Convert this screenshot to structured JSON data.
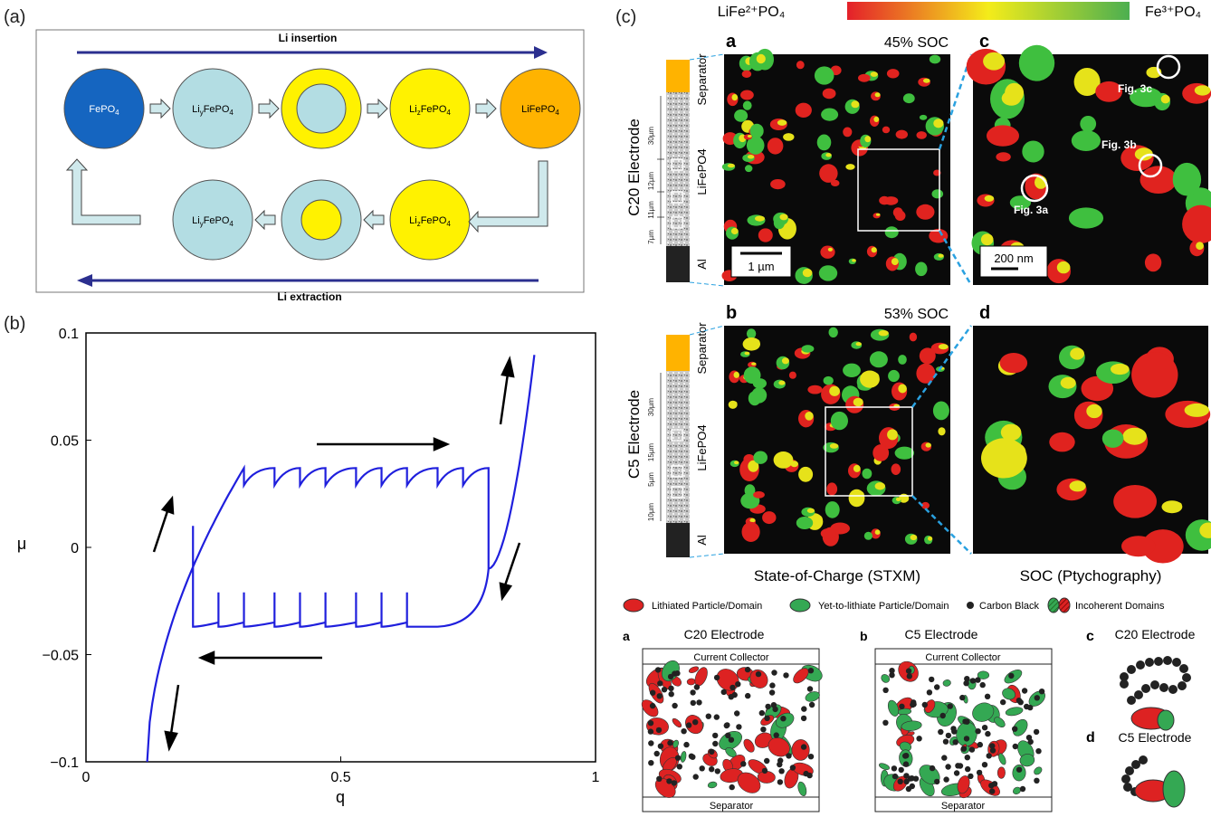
{
  "panel_a": {
    "label": "(a)",
    "insertion_label": "Li insertion",
    "extraction_label": "Li extraction",
    "top_row": [
      "FePO4",
      "LiyFePO4",
      "",
      "LizFePO4",
      "LiFePO4"
    ],
    "bottom_row": [
      "LiyFePO4",
      "",
      "LizFePO4"
    ],
    "colors": {
      "dark_blue": "#1565c0",
      "light_blue": "#b3dde3",
      "yellow": "#fff200",
      "orange": "#ffb300",
      "arrow_blue": "#2b2f8f"
    }
  },
  "panel_b": {
    "label": "(b)",
    "chart_data": {
      "type": "line",
      "xlabel": "q",
      "ylabel": "μ",
      "xlim": [
        0,
        1
      ],
      "ylim": [
        -0.1,
        0.1
      ],
      "xticks": [
        "0",
        "0.5",
        "1"
      ],
      "yticks": [
        "0.1",
        "0.05",
        "0",
        "−0.05",
        "−0.1"
      ],
      "upper_branch_peaks_q": [
        0.31,
        0.37,
        0.42,
        0.47,
        0.53,
        0.58,
        0.63,
        0.69,
        0.74,
        0.79
      ],
      "upper_value": 0.037,
      "upper_dip": 0.029,
      "lower_branch_q": [
        0.21,
        0.26,
        0.31,
        0.37,
        0.42,
        0.47,
        0.53,
        0.58,
        0.63
      ],
      "lower_value": -0.037,
      "lower_peak": -0.028,
      "line_color": "#1f1fdd"
    }
  },
  "panel_c": {
    "label": "(c)",
    "colorbar_left": "LiFe²⁺PO₄",
    "colorbar_right": "Fe³⁺PO₄",
    "top": {
      "electrode": "C20 Electrode",
      "letter_a": "a",
      "soc": "45% SOC",
      "letter_c": "c",
      "scale_a": "1 µm",
      "scale_c": "200 nm",
      "labels": [
        "Separator",
        "LiFePO4",
        "Al"
      ],
      "dims": [
        "30µm",
        "12µm",
        "11µm",
        "7µm"
      ],
      "figs": [
        "Fig. 3c",
        "Fig. 3b",
        "Fig. 3a"
      ]
    },
    "bottom": {
      "electrode": "C5 Electrode",
      "letter_b": "b",
      "soc": "53% SOC",
      "letter_d": "d",
      "labels": [
        "Separator",
        "LiFePO4",
        "Al"
      ],
      "dims": [
        "30µm",
        "15µm",
        "5µm",
        "10µm"
      ]
    },
    "caption_left": "State-of-Charge (STXM)",
    "caption_right": "SOC (Ptychography)",
    "legend": [
      "Lithiated Particle/Domain",
      "Yet-to-lithiate Particle/Domain",
      "Carbon Black",
      "Incoherent Domains"
    ],
    "schematic": {
      "a_letter": "a",
      "a_title": "C20 Electrode",
      "b_letter": "b",
      "b_title": "C5 Electrode",
      "c_letter": "c",
      "c_title": "C20 Electrode",
      "d_letter": "d",
      "d_title": "C5 Electrode",
      "current_collector": "Current Collector",
      "separator": "Separator"
    }
  }
}
